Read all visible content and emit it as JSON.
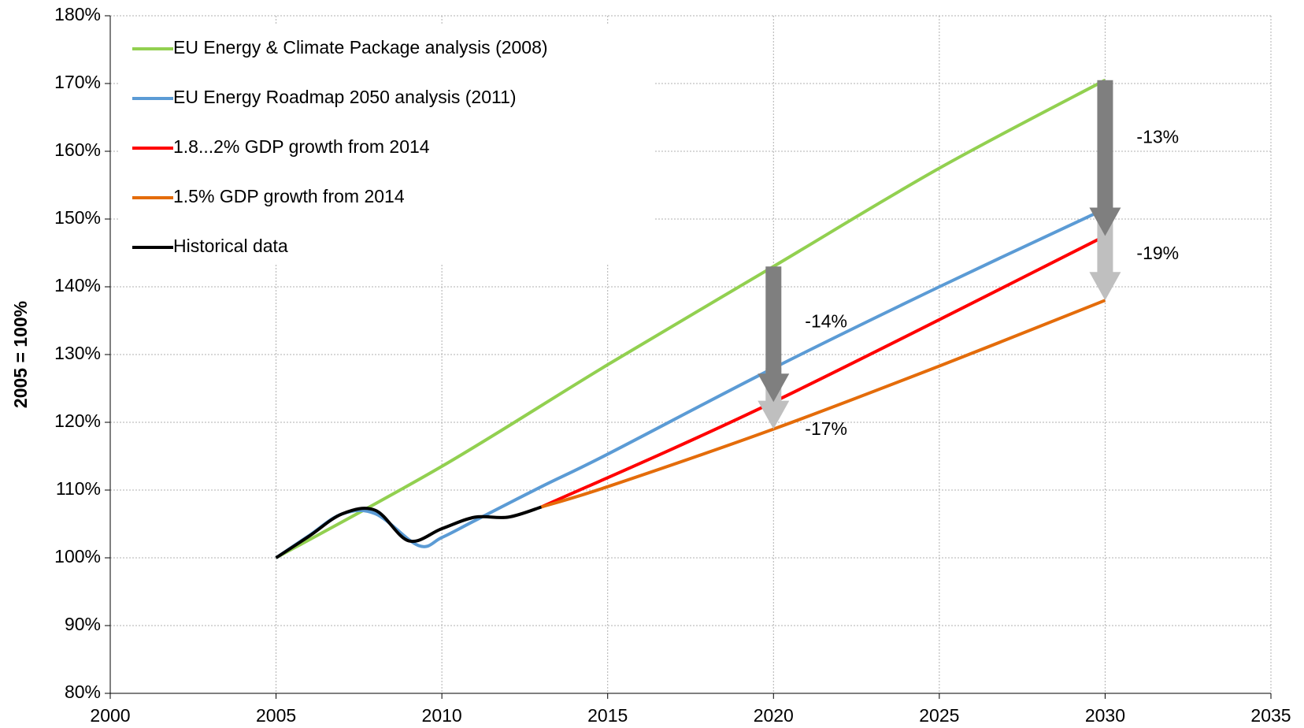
{
  "chart_data": {
    "type": "line",
    "y_label": "2005 = 100%",
    "xlim": [
      2000,
      2035
    ],
    "xticks": [
      2000,
      2005,
      2010,
      2015,
      2020,
      2025,
      2030,
      2035
    ],
    "ylim": [
      80,
      180
    ],
    "yticks": [
      {
        "value": 80,
        "label": "80%"
      },
      {
        "value": 90,
        "label": "90%"
      },
      {
        "value": 100,
        "label": "100%"
      },
      {
        "value": 110,
        "label": "110%"
      },
      {
        "value": 120,
        "label": "120%"
      },
      {
        "value": 130,
        "label": "130%"
      },
      {
        "value": 140,
        "label": "140%"
      },
      {
        "value": 150,
        "label": "150%"
      },
      {
        "value": 160,
        "label": "160%"
      },
      {
        "value": 170,
        "label": "170%"
      },
      {
        "value": 180,
        "label": "180%"
      }
    ],
    "grid": true,
    "legend": "upper left",
    "series": [
      {
        "name": "EU Energy & Climate Package analysis (2008)",
        "color": "#92d050",
        "x": [
          2005,
          2010,
          2015,
          2020,
          2025,
          2030
        ],
        "values": [
          100,
          113.5,
          128.5,
          143,
          157.5,
          170.5
        ]
      },
      {
        "name": "EU Energy Roadmap 2050 analysis (2011)",
        "color": "#5b9bd5",
        "x": [
          2005,
          2006,
          2007,
          2008,
          2009.3,
          2010,
          2011,
          2013,
          2015,
          2020,
          2025,
          2030
        ],
        "values": [
          100,
          103.3,
          106.5,
          106.5,
          101.8,
          103,
          105.5,
          110.5,
          115.3,
          128,
          140,
          151.5
        ]
      },
      {
        "name": "1.8...2% GDP growth from 2014",
        "color": "#ff0000",
        "x": [
          2013,
          2020,
          2030
        ],
        "values": [
          107.5,
          123,
          147.5
        ]
      },
      {
        "name": "1.5% GDP growth from 2014",
        "color": "#e46c0a",
        "x": [
          2013,
          2015,
          2020,
          2025,
          2030
        ],
        "values": [
          107.5,
          110.5,
          119,
          128.3,
          138
        ]
      },
      {
        "name": "Historical data",
        "color": "#000000",
        "x": [
          2005,
          2006,
          2007,
          2008,
          2009,
          2010,
          2011,
          2012,
          2013
        ],
        "values": [
          100,
          103.2,
          106.5,
          107,
          102.5,
          104.3,
          106,
          106,
          107.5
        ]
      }
    ],
    "annotations": [
      "-13%",
      "-19%",
      "-14%",
      "-17%"
    ]
  }
}
